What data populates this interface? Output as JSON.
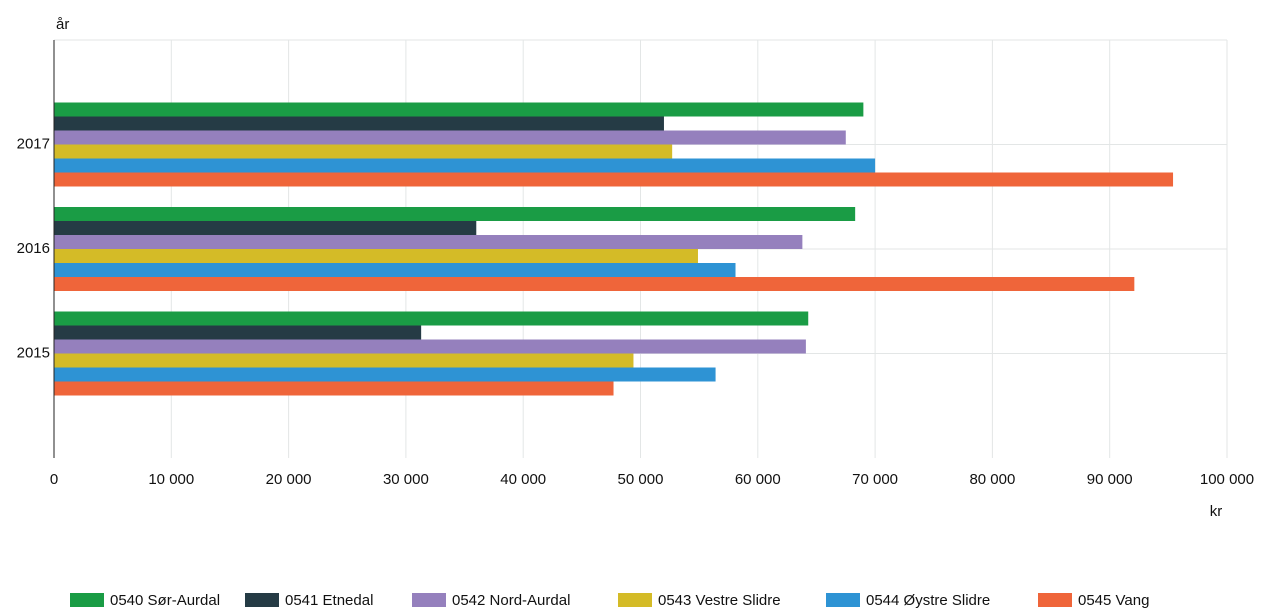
{
  "chart_data": {
    "type": "hbar",
    "y_label": "år",
    "x_label": "kr",
    "categories": [
      "2017",
      "2016",
      "2015"
    ],
    "series": [
      {
        "name": "0540 Sør-Aurdal",
        "color": "#1a9c45",
        "values": [
          69000,
          68300,
          64300
        ]
      },
      {
        "name": "0541 Etnedal",
        "color": "#253b45",
        "values": [
          52000,
          36000,
          31300
        ]
      },
      {
        "name": "0542 Nord-Aurdal",
        "color": "#9580bd",
        "values": [
          67500,
          63800,
          64100
        ]
      },
      {
        "name": "0543 Vestre Slidre",
        "color": "#d4bb27",
        "values": [
          52700,
          54900,
          49400
        ]
      },
      {
        "name": "0544 Øystre Slidre",
        "color": "#2e93d4",
        "values": [
          70000,
          58100,
          56400
        ]
      },
      {
        "name": "0545 Vang",
        "color": "#ef653a",
        "values": [
          95400,
          92100,
          47700
        ]
      }
    ],
    "xlim": [
      0,
      100000
    ],
    "xticks": [
      0,
      {
        "value": 10000,
        "label": "10 000"
      },
      {
        "value": 20000,
        "label": "20 000"
      },
      {
        "value": 30000,
        "label": "30 000"
      },
      {
        "value": 40000,
        "label": "40 000"
      },
      {
        "value": 50000,
        "label": "50 000"
      },
      {
        "value": 60000,
        "label": "60 000"
      },
      {
        "value": 70000,
        "label": "70 000"
      },
      {
        "value": 80000,
        "label": "80 000"
      },
      {
        "value": 90000,
        "label": "90 000"
      },
      {
        "value": 100000,
        "label": "100 000"
      }
    ],
    "grid": true,
    "legend": "bottom"
  }
}
